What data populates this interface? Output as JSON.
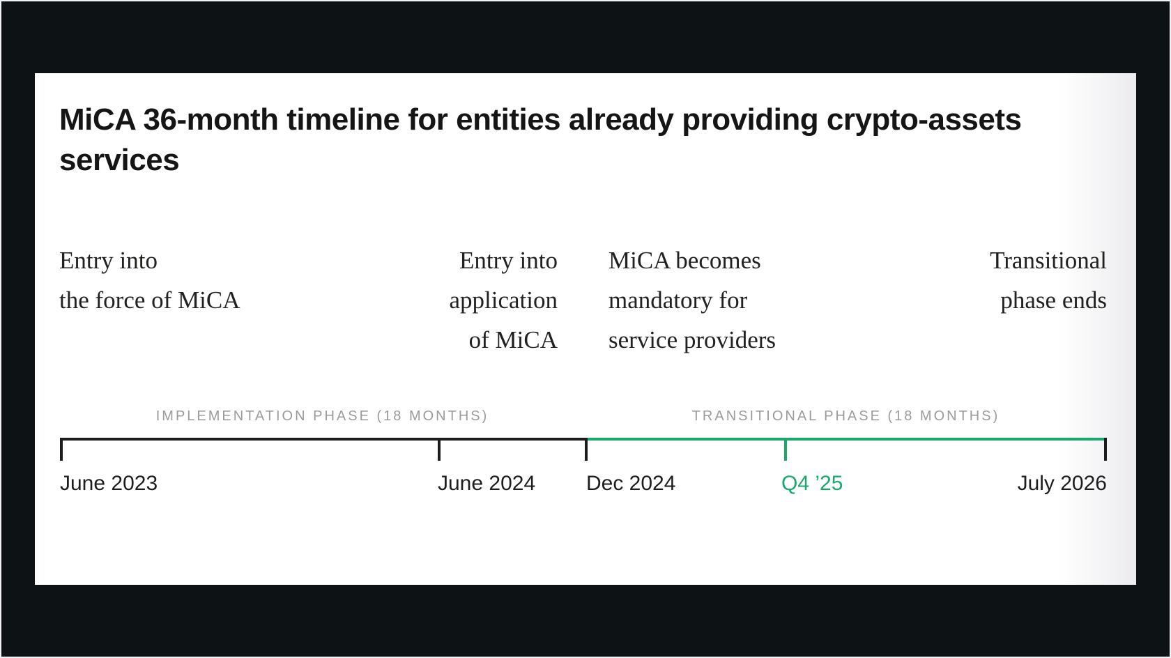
{
  "title": "MiCA 36-month timeline for entities already providing crypto-assets services",
  "events": [
    {
      "name": "entry-into-force",
      "align": "left",
      "lines": [
        "Entry into",
        "the force of MiCA"
      ]
    },
    {
      "name": "entry-into-application",
      "align": "right",
      "lines": [
        "Entry into",
        "application",
        "of MiCA"
      ]
    },
    {
      "name": "mica-mandatory",
      "align": "left",
      "lines": [
        "MiCA becomes",
        "mandatory for",
        "service providers"
      ]
    },
    {
      "name": "transitional-phase-ends",
      "align": "right",
      "lines": [
        "Transitional",
        "phase ends"
      ]
    }
  ],
  "phases": [
    {
      "label": "IMPLEMENTATION PHASE (18 MONTHS)",
      "segment_color": "#1c1c1c"
    },
    {
      "label": "TRANSITIONAL PHASE (18 MONTHS)",
      "segment_color": "#1aa86c"
    }
  ],
  "dates": [
    {
      "label": "June 2023",
      "highlight": false
    },
    {
      "label": "June 2024",
      "highlight": false
    },
    {
      "label": "Dec 2024",
      "highlight": false
    },
    {
      "label": "Q4 ’25",
      "highlight": true
    },
    {
      "label": "July 2026",
      "highlight": false
    }
  ],
  "colors": {
    "accent_green": "#1aa86c",
    "axis_black": "#1c1c1c",
    "phase_label_gray": "#9b9b9b",
    "card_background": "#ffffff",
    "page_background": "#0d1315"
  }
}
